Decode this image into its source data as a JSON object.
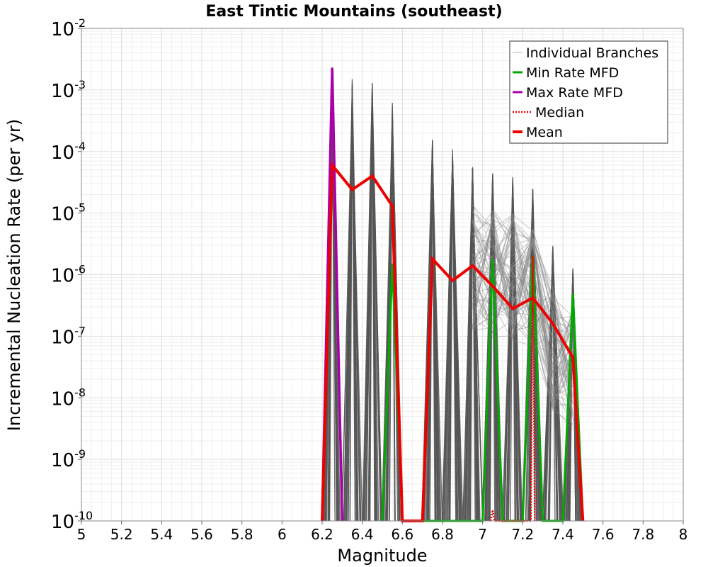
{
  "chart_data": {
    "type": "line",
    "title": "East Tintic Mountains (southeast)",
    "xlabel": "Magnitude",
    "ylabel": "Incremental Nucleation Rate (per yr)",
    "xlim": [
      5,
      8
    ],
    "ylim_log10": [
      -10,
      -2
    ],
    "y_scale": "log",
    "x_ticks": [
      "5",
      "5.2",
      "5.4",
      "5.6",
      "5.8",
      "6",
      "6.2",
      "6.4",
      "6.6",
      "6.8",
      "7",
      "7.2",
      "7.4",
      "7.6",
      "7.8",
      "8"
    ],
    "y_ticks": [
      {
        "base": "10",
        "exp": "-10"
      },
      {
        "base": "10",
        "exp": "-9"
      },
      {
        "base": "10",
        "exp": "-8"
      },
      {
        "base": "10",
        "exp": "-7"
      },
      {
        "base": "10",
        "exp": "-6"
      },
      {
        "base": "10",
        "exp": "-5"
      },
      {
        "base": "10",
        "exp": "-4"
      },
      {
        "base": "10",
        "exp": "-3"
      },
      {
        "base": "10",
        "exp": "-2"
      }
    ],
    "grid": true,
    "legend_position": "top-right",
    "legend": [
      {
        "label": "Individual Branches",
        "color": "#bbbbbb",
        "style": "solid-thin"
      },
      {
        "label": "Min Rate MFD",
        "color": "#00aa00",
        "style": "solid"
      },
      {
        "label": "Max Rate MFD",
        "color": "#aa00aa",
        "style": "solid"
      },
      {
        "label": "Median",
        "color": "#ee0000",
        "style": "dotted"
      },
      {
        "label": "Mean",
        "color": "#ee0000",
        "style": "solid-thick"
      }
    ],
    "branch_spikes": [
      {
        "x": 6.25,
        "peak": 0.0023
      },
      {
        "x": 6.35,
        "peak": 0.0016
      },
      {
        "x": 6.45,
        "peak": 0.0013
      },
      {
        "x": 6.55,
        "peak": 0.0008
      },
      {
        "x": 6.75,
        "peak": 0.00016
      },
      {
        "x": 6.85,
        "peak": 0.00013
      },
      {
        "x": 6.95,
        "peak": 6e-05
      },
      {
        "x": 7.05,
        "peak": 4.5e-05
      },
      {
        "x": 7.15,
        "peak": 4e-05
      },
      {
        "x": 7.25,
        "peak": 2.5e-05
      },
      {
        "x": 7.35,
        "peak": 3e-06
      },
      {
        "x": 7.45,
        "peak": 1.5e-06
      }
    ],
    "series": [
      {
        "name": "Mean",
        "x": [
          6.2,
          6.25,
          6.35,
          6.45,
          6.55,
          6.6,
          6.7,
          6.75,
          6.85,
          6.95,
          7.05,
          7.15,
          7.25,
          7.35,
          7.45,
          7.5
        ],
        "y": [
          1e-10,
          6e-05,
          2.4e-05,
          4e-05,
          1.3e-05,
          1e-10,
          1e-10,
          1.8e-06,
          8e-07,
          1.4e-06,
          6.5e-07,
          2.8e-07,
          4.2e-07,
          1.6e-07,
          4.5e-08,
          1e-10
        ]
      },
      {
        "name": "Max Rate MFD",
        "x": [
          6.2,
          6.25,
          6.3
        ],
        "y": [
          1e-10,
          0.0023,
          1e-10
        ]
      },
      {
        "name": "Min Rate MFD",
        "x": [
          6.5,
          6.55,
          6.6,
          6.7,
          7.0,
          7.05,
          7.1,
          7.2,
          7.25,
          7.3,
          7.4,
          7.45,
          7.5
        ],
        "y": [
          1e-10,
          1.5e-06,
          1e-10,
          1e-10,
          1e-10,
          1.8e-06,
          1e-10,
          1e-10,
          2e-06,
          1e-10,
          1e-10,
          5e-07,
          1e-10
        ]
      },
      {
        "name": "Median",
        "x": [
          7.04,
          7.05,
          7.06,
          7.24,
          7.25,
          7.26
        ],
        "y": [
          1e-10,
          1.5e-10,
          1e-10,
          1e-10,
          2e-06,
          1e-10
        ]
      }
    ]
  }
}
